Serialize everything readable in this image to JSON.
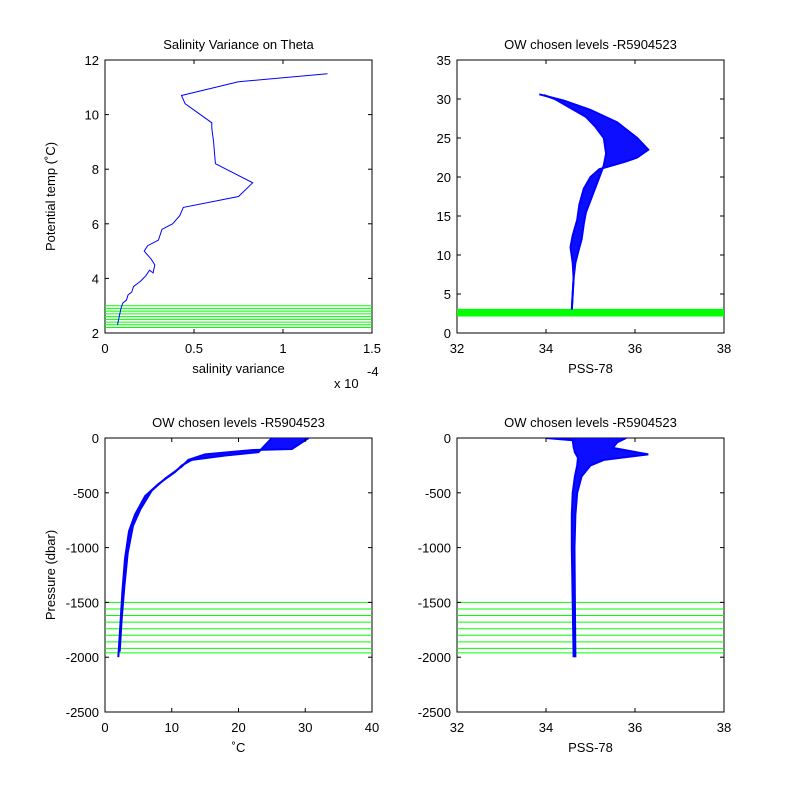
{
  "chart_data": [
    {
      "type": "line",
      "title": "Salinity Variance on Theta",
      "xlabel": "salinity variance",
      "ylabel": "Potential temp (˚C)",
      "x_multiplier_label": "x 10",
      "x_multiplier_exponent": "-4",
      "xlim": [
        0,
        1.5
      ],
      "ylim": [
        2,
        12
      ],
      "xticks": [
        0,
        0.5,
        1,
        1.5
      ],
      "xtick_labels": [
        "0",
        "0.5",
        "1",
        "1.5"
      ],
      "yticks": [
        2,
        4,
        6,
        8,
        10,
        12
      ],
      "ytick_labels": [
        "2",
        "4",
        "6",
        "8",
        "10",
        "12"
      ],
      "series": [
        {
          "color": "#0000ff",
          "x": [
            0.07,
            0.08,
            0.09,
            0.1,
            0.12,
            0.13,
            0.15,
            0.16,
            0.18,
            0.2,
            0.23,
            0.25,
            0.27,
            0.28,
            0.26,
            0.22,
            0.24,
            0.3,
            0.32,
            0.38,
            0.42,
            0.44,
            0.75,
            0.83,
            0.62,
            0.61,
            0.6,
            0.6,
            0.45,
            0.43,
            0.75,
            1.25
          ],
          "y": [
            2.3,
            2.6,
            2.9,
            3.1,
            3.2,
            3.4,
            3.5,
            3.7,
            3.8,
            3.9,
            4.1,
            4.3,
            4.2,
            4.5,
            4.7,
            5.0,
            5.2,
            5.4,
            5.8,
            6.0,
            6.3,
            6.6,
            7.0,
            7.5,
            8.2,
            9.0,
            9.5,
            9.7,
            10.4,
            10.7,
            11.2,
            11.5
          ]
        }
      ],
      "hlines": {
        "color": "#00ff00",
        "y": [
          2.2,
          2.3,
          2.4,
          2.5,
          2.6,
          2.7,
          2.8,
          2.9,
          3.0
        ]
      }
    },
    {
      "type": "line",
      "title": "OW chosen levels -R5904523",
      "xlabel": "PSS-78",
      "ylabel": "",
      "xlim": [
        32,
        38
      ],
      "ylim": [
        0,
        35
      ],
      "xticks": [
        32,
        34,
        36,
        38
      ],
      "xtick_labels": [
        "32",
        "34",
        "36",
        "38"
      ],
      "yticks": [
        0,
        5,
        10,
        15,
        20,
        25,
        30,
        35
      ],
      "ytick_labels": [
        "0",
        "5",
        "10",
        "15",
        "20",
        "25",
        "30",
        "35"
      ],
      "series": [
        {
          "color": "#0000ff",
          "x": [
            34.58,
            34.6,
            34.62,
            34.66,
            34.75,
            34.8,
            34.85,
            34.9,
            35.0,
            35.1,
            35.2,
            35.3,
            35.35,
            35.3,
            35.1,
            34.9,
            34.5,
            34.2,
            33.95
          ],
          "y": [
            3.0,
            5.0,
            7.0,
            9.0,
            11.0,
            12.0,
            14.0,
            15.5,
            17.0,
            18.5,
            20.0,
            21.5,
            23.0,
            25.0,
            26.5,
            27.7,
            29.0,
            30.0,
            30.5
          ]
        },
        {
          "color": "#0000ff",
          "x": [
            34.58,
            34.6,
            34.62,
            34.6,
            34.55,
            34.6,
            34.7,
            34.75,
            34.85,
            35.0,
            35.2,
            35.5,
            35.8,
            36.05,
            36.3,
            36.05,
            35.6,
            35.0,
            34.4,
            33.85
          ],
          "y": [
            3.0,
            5.0,
            7.0,
            9.0,
            11.0,
            12.5,
            14.5,
            16.5,
            18.5,
            20.0,
            21.0,
            21.5,
            22.0,
            22.5,
            23.5,
            25.0,
            27.0,
            28.6,
            29.8,
            30.6
          ]
        }
      ],
      "hlines": {
        "color": "#00ff00",
        "y": [
          2.2,
          2.3,
          2.4,
          2.5,
          2.6,
          2.7,
          2.8,
          2.9,
          3.0
        ]
      }
    },
    {
      "type": "line",
      "title": "OW chosen levels -R5904523",
      "xlabel": "˚C",
      "ylabel": "Pressure (dbar)",
      "xlim": [
        0,
        40
      ],
      "ylim": [
        -2500,
        0
      ],
      "xticks": [
        0,
        10,
        20,
        30,
        40
      ],
      "xtick_labels": [
        "0",
        "10",
        "20",
        "30",
        "40"
      ],
      "yticks": [
        -2500,
        -2000,
        -1500,
        -1000,
        -500,
        0
      ],
      "ytick_labels": [
        "-2500",
        "-2000",
        "-1500",
        "-1000",
        "-500",
        "0"
      ],
      "series": [
        {
          "color": "#0000ff",
          "x": [
            2.0,
            2.3,
            2.6,
            3.0,
            3.6,
            4.5,
            6.0,
            8.0,
            10.5,
            11.5,
            13.0,
            18.0,
            23.0,
            25.0
          ],
          "y": [
            -2000,
            -1700,
            -1400,
            -1100,
            -850,
            -700,
            -530,
            -420,
            -310,
            -250,
            -200,
            -160,
            -130,
            0
          ]
        },
        {
          "color": "#0000ff",
          "x": [
            2.2,
            2.5,
            2.9,
            3.4,
            4.2,
            5.3,
            7.0,
            9.0,
            11.5,
            12.5,
            15.0,
            22.0,
            28.0,
            30.5
          ],
          "y": [
            -1950,
            -1650,
            -1350,
            -1050,
            -800,
            -650,
            -480,
            -370,
            -260,
            -200,
            -150,
            -110,
            -100,
            0
          ]
        }
      ],
      "hlines": {
        "color": "#00ff00",
        "y": [
          -1500,
          -1560,
          -1620,
          -1680,
          -1740,
          -1800,
          -1860,
          -1920,
          -1960
        ]
      }
    },
    {
      "type": "line",
      "title": "OW chosen levels -R5904523",
      "xlabel": "PSS-78",
      "ylabel": "",
      "xlim": [
        32,
        38
      ],
      "ylim": [
        -2500,
        0
      ],
      "xticks": [
        32,
        34,
        36,
        38
      ],
      "xtick_labels": [
        "32",
        "34",
        "36",
        "38"
      ],
      "yticks": [
        -2500,
        -2000,
        -1500,
        -1000,
        -500,
        0
      ],
      "ytick_labels": [
        "-2500",
        "-2000",
        "-1500",
        "-1000",
        "-500",
        "0"
      ],
      "series": [
        {
          "color": "#0000ff",
          "x": [
            34.62,
            34.6,
            34.58,
            34.58,
            34.6,
            34.65,
            34.7,
            34.72,
            34.65,
            34.62,
            34.6,
            34.0
          ],
          "y": [
            -2000,
            -1500,
            -1000,
            -700,
            -500,
            -350,
            -250,
            -180,
            -130,
            -80,
            -20,
            0
          ]
        },
        {
          "color": "#0000ff",
          "x": [
            34.66,
            34.65,
            34.64,
            34.66,
            34.7,
            34.8,
            35.0,
            35.3,
            36.3,
            35.5,
            35.6,
            35.8
          ],
          "y": [
            -2000,
            -1500,
            -1000,
            -700,
            -500,
            -350,
            -250,
            -200,
            -150,
            -90,
            -40,
            0
          ]
        }
      ],
      "hlines": {
        "color": "#00ff00",
        "y": [
          -1500,
          -1560,
          -1620,
          -1680,
          -1740,
          -1800,
          -1860,
          -1920,
          -1960
        ]
      }
    }
  ]
}
